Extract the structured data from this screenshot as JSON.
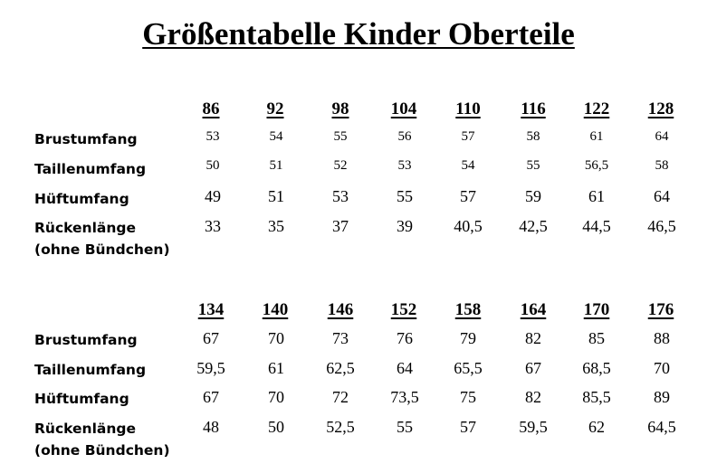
{
  "title": "Größentabelle Kinder Oberteile",
  "tables": [
    {
      "sizes": [
        "86",
        "92",
        "98",
        "104",
        "110",
        "116",
        "122",
        "128"
      ],
      "rows": [
        {
          "label": "Brustumfang",
          "values": [
            "53",
            "54",
            "55",
            "56",
            "57",
            "58",
            "61",
            "64"
          ]
        },
        {
          "label": "Taillenumfang",
          "values": [
            "50",
            "51",
            "52",
            "53",
            "54",
            "55",
            "56,5",
            "58"
          ]
        },
        {
          "label": "Hüftumfang",
          "values": [
            "49",
            "51",
            "53",
            "55",
            "57",
            "59",
            "61",
            "64"
          ]
        },
        {
          "label": "Rückenlänge",
          "label_line2": "(ohne Bündchen)",
          "values": [
            "33",
            "35",
            "37",
            "39",
            "40,5",
            "42,5",
            "44,5",
            "46,5"
          ]
        }
      ]
    },
    {
      "sizes": [
        "134",
        "140",
        "146",
        "152",
        "158",
        "164",
        "170",
        "176"
      ],
      "rows": [
        {
          "label": "Brustumfang",
          "values": [
            "67",
            "70",
            "73",
            "76",
            "79",
            "82",
            "85",
            "88"
          ]
        },
        {
          "label": "Taillenumfang",
          "values": [
            "59,5",
            "61",
            "62,5",
            "64",
            "65,5",
            "67",
            "68,5",
            "70"
          ]
        },
        {
          "label": "Hüftumfang",
          "values": [
            "67",
            "70",
            "72",
            "73,5",
            "75",
            "82",
            "85,5",
            "89"
          ]
        },
        {
          "label": "Rückenlänge",
          "label_line2": "(ohne Bündchen)",
          "values": [
            "48",
            "50",
            "52,5",
            "55",
            "57",
            "59,5",
            "62",
            "64,5"
          ]
        }
      ]
    }
  ]
}
